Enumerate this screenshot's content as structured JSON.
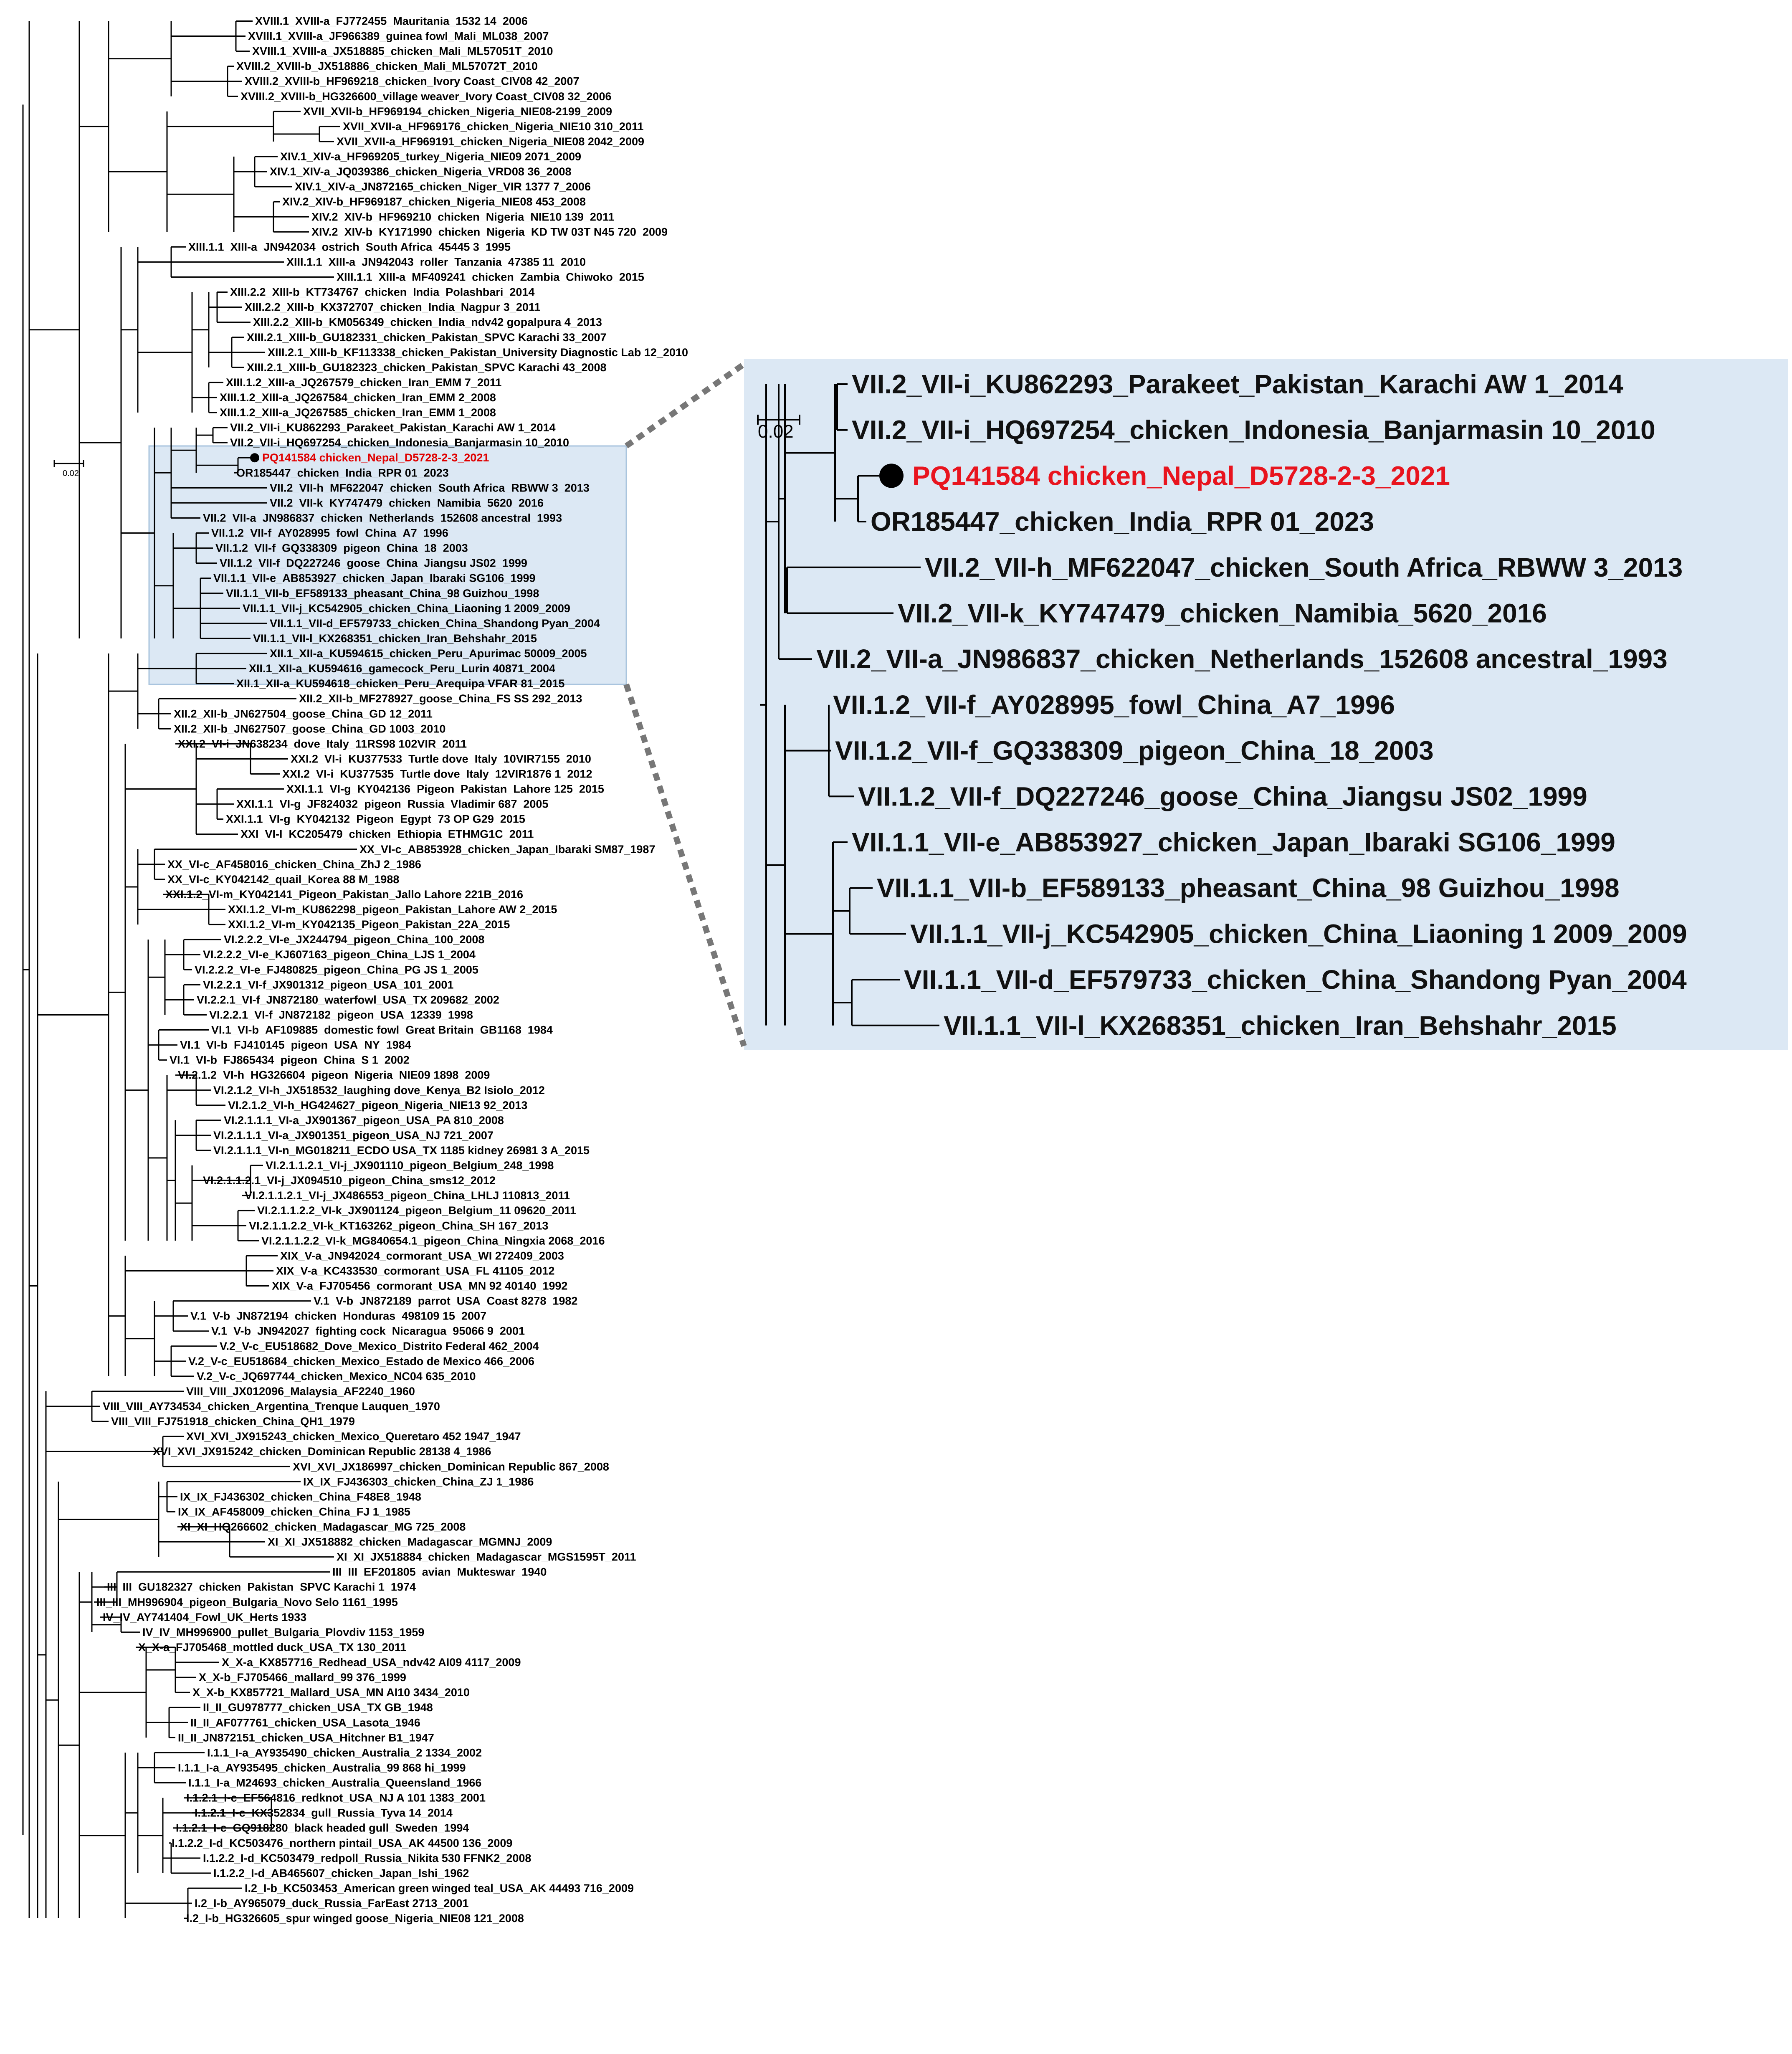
{
  "colors": {
    "highlight": "#e00000",
    "panel": "#dce8f4",
    "connector": "#777777"
  },
  "tree": {
    "scale_label": "0.02",
    "leaves": [
      "XVIII.1_XVIII-a_FJ772455_Mauritania_1532 14_2006",
      "XVIII.1_XVIII-a_JF966389_guinea fowl_Mali_ML038_2007",
      "XVIII.1_XVIII-a_JX518885_chicken_Mali_ML57051T_2010",
      "XVIII.2_XVIII-b_JX518886_chicken_Mali_ML57072T_2010",
      "XVIII.2_XVIII-b_HF969218_chicken_Ivory Coast_CIV08 42_2007",
      "XVIII.2_XVIII-b_HG326600_village weaver_Ivory Coast_CIV08 32_2006",
      "XVII_XVII-b_HF969194_chicken_Nigeria_NIE08-2199_2009",
      "XVII_XVII-a_HF969176_chicken_Nigeria_NIE10 310_2011",
      "XVII_XVII-a_HF969191_chicken_Nigeria_NIE08 2042_2009",
      "XIV.1_XIV-a_HF969205_turkey_Nigeria_NIE09 2071_2009",
      "XIV.1_XIV-a_JQ039386_chicken_Nigeria_VRD08 36_2008",
      "XIV.1_XIV-a_JN872165_chicken_Niger_VIR 1377 7_2006",
      "XIV.2_XIV-b_HF969187_chicken_Nigeria_NIE08 453_2008",
      "XIV.2_XIV-b_HF969210_chicken_Nigeria_NIE10 139_2011",
      "XIV.2_XIV-b_KY171990_chicken_Nigeria_KD TW 03T N45 720_2009",
      "XIII.1.1_XIII-a_JN942034_ostrich_South Africa_45445 3_1995",
      "XIII.1.1_XIII-a_JN942043_roller_Tanzania_47385 11_2010",
      "XIII.1.1_XIII-a_MF409241_chicken_Zambia_Chiwoko_2015",
      "XIII.2.2_XIII-b_KT734767_chicken_India_Polashbari_2014",
      "XIII.2.2_XIII-b_KX372707_chicken_India_Nagpur 3_2011",
      "XIII.2.2_XIII-b_KM056349_chicken_India_ndv42 gopalpura 4_2013",
      "XIII.2.1_XIII-b_GU182331_chicken_Pakistan_SPVC Karachi 33_2007",
      "XIII.2.1_XIII-b_KF113338_chicken_Pakistan_University Diagnostic Lab 12_2010",
      "XIII.2.1_XIII-b_GU182323_chicken_Pakistan_SPVC Karachi 43_2008",
      "XIII.1.2_XIII-a_JQ267579_chicken_Iran_EMM 7_2011",
      "XIII.1.2_XIII-a_JQ267584_chicken_Iran_EMM 2_2008",
      "XIII.1.2_XIII-a_JQ267585_chicken_Iran_EMM 1_2008",
      "VII.2_VII-i_KU862293_Parakeet_Pakistan_Karachi AW 1_2014",
      "VII.2_VII-i_HQ697254_chicken_Indonesia_Banjarmasin 10_2010",
      "PQ141584 chicken_Nepal_D5728-2-3_2021",
      "OR185447_chicken_India_RPR 01_2023",
      "VII.2_VII-h_MF622047_chicken_South Africa_RBWW 3_2013",
      "VII.2_VII-k_KY747479_chicken_Namibia_5620_2016",
      "VII.2_VII-a_JN986837_chicken_Netherlands_152608 ancestral_1993",
      "VII.1.2_VII-f_AY028995_fowl_China_A7_1996",
      "VII.1.2_VII-f_GQ338309_pigeon_China_18_2003",
      "VII.1.2_VII-f_DQ227246_goose_China_Jiangsu JS02_1999",
      "VII.1.1_VII-e_AB853927_chicken_Japan_Ibaraki SG106_1999",
      "VII.1.1_VII-b_EF589133_pheasant_China_98 Guizhou_1998",
      "VII.1.1_VII-j_KC542905_chicken_China_Liaoning 1 2009_2009",
      "VII.1.1_VII-d_EF579733_chicken_China_Shandong Pyan_2004",
      "VII.1.1_VII-l_KX268351_chicken_Iran_Behshahr_2015",
      "XII.1_XII-a_KU594615_chicken_Peru_Apurimac 50009_2005",
      "XII.1_XII-a_KU594616_gamecock_Peru_Lurin 40871_2004",
      "XII.1_XII-a_KU594618_chicken_Peru_Arequipa VFAR 81_2015",
      "XII.2_XII-b_MF278927_goose_China_FS SS 292_2013",
      "XII.2_XII-b_JN627504_goose_China_GD 12_2011",
      "XII.2_XII-b_JN627507_goose_China_GD 1003_2010",
      "XXI.2_VI-i_JN638234_dove_Italy_11RS98 102VIR_2011",
      "XXI.2_VI-i_KU377533_Turtle dove_Italy_10VIR7155_2010",
      "XXI.2_VI-i_KU377535_Turtle dove_Italy_12VIR1876 1_2012",
      "XXI.1.1_VI-g_KY042136_Pigeon_Pakistan_Lahore 125_2015",
      "XXI.1.1_VI-g_JF824032_pigeon_Russia_Vladimir 687_2005",
      "XXI.1.1_VI-g_KY042132_Pigeon_Egypt_73 OP G29_2015",
      "XXI_VI-l_KC205479_chicken_Ethiopia_ETHMG1C_2011",
      "XX_VI-c_AB853928_chicken_Japan_Ibaraki SM87_1987",
      "XX_VI-c_AF458016_chicken_China_ZhJ 2_1986",
      "XX_VI-c_KY042142_quail_Korea 88 M_1988",
      "XXI.1.2_VI-m_KY042141_Pigeon_Pakistan_Jallo Lahore 221B_2016",
      "XXI.1.2_VI-m_KU862298_pigeon_Pakistan_Lahore AW 2_2015",
      "XXI.1.2_VI-m_KY042135_Pigeon_Pakistan_22A_2015",
      "VI.2.2.2_VI-e_JX244794_pigeon_China_100_2008",
      "VI.2.2.2_VI-e_KJ607163_pigeon_China_LJS 1_2004",
      "VI.2.2.2_VI-e_FJ480825_pigeon_China_PG JS 1_2005",
      "VI.2.2.1_VI-f_JX901312_pigeon_USA_101_2001",
      "VI.2.2.1_VI-f_JN872180_waterfowl_USA_TX 209682_2002",
      "VI.2.2.1_VI-f_JN872182_pigeon_USA_12339_1998",
      "VI.1_VI-b_AF109885_domestic fowl_Great Britain_GB1168_1984",
      "VI.1_VI-b_FJ410145_pigeon_USA_NY_1984",
      "VI.1_VI-b_FJ865434_pigeon_China_S 1_2002",
      "VI.2.1.2_VI-h_HG326604_pigeon_Nigeria_NIE09 1898_2009",
      "VI.2.1.2_VI-h_JX518532_laughing dove_Kenya_B2 Isiolo_2012",
      "VI.2.1.2_VI-h_HG424627_pigeon_Nigeria_NIE13 92_2013",
      "VI.2.1.1.1_VI-a_JX901367_pigeon_USA_PA 810_2008",
      "VI.2.1.1.1_VI-a_JX901351_pigeon_USA_NJ 721_2007",
      "VI.2.1.1.1_VI-n_MG018211_ECDO USA_TX 1185 kidney 26981 3 A_2015",
      "VI.2.1.1.2.1_VI-j_JX901110_pigeon_Belgium_248_1998",
      "VI.2.1.1.2.1_VI-j_JX094510_pigeon_China_sms12_2012",
      "VI.2.1.1.2.1_VI-j_JX486553_pigeon_China_LHLJ 110813_2011",
      "VI.2.1.1.2.2_VI-k_JX901124_pigeon_Belgium_11 09620_2011",
      "VI.2.1.1.2.2_VI-k_KT163262_pigeon_China_SH 167_2013",
      "VI.2.1.1.2.2_VI-k_MG840654.1_pigeon_China_Ningxia 2068_2016",
      "XIX_V-a_JN942024_cormorant_USA_WI 272409_2003",
      "XIX_V-a_KC433530_cormorant_USA_FL 41105_2012",
      "XIX_V-a_FJ705456_cormorant_USA_MN 92 40140_1992",
      "V.1_V-b_JN872189_parrot_USA_Coast 8278_1982",
      "V.1_V-b_JN872194_chicken_Honduras_498109 15_2007",
      "V.1_V-b_JN942027_fighting cock_Nicaragua_95066 9_2001",
      "V.2_V-c_EU518682_Dove_Mexico_Distrito Federal 462_2004",
      "V.2_V-c_EU518684_chicken_Mexico_Estado de Mexico 466_2006",
      "V.2_V-c_JQ697744_chicken_Mexico_NC04 635_2010",
      "VIII_VIII_JX012096_Malaysia_AF2240_1960",
      "VIII_VIII_AY734534_chicken_Argentina_Trenque Lauquen_1970",
      "VIII_VIII_FJ751918_chicken_China_QH1_1979",
      "XVI_XVI_JX915243_chicken_Mexico_Queretaro 452 1947_1947",
      "XVI_XVI_JX915242_chicken_Dominican Republic 28138 4_1986",
      "XVI_XVI_JX186997_chicken_Dominican Republic 867_2008",
      "IX_IX_FJ436303_chicken_China_ZJ 1_1986",
      "IX_IX_FJ436302_chicken_China_F48E8_1948",
      "IX_IX_AF458009_chicken_China_FJ 1_1985",
      "XI_XI_HQ266602_chicken_Madagascar_MG 725_2008",
      "XI_XI_JX518882_chicken_Madagascar_MGMNJ_2009",
      "XI_XI_JX518884_chicken_Madagascar_MGS1595T_2011",
      "III_III_EF201805_avian_Mukteswar_1940",
      "III_III_GU182327_chicken_Pakistan_SPVC Karachi 1_1974",
      "III_III_MH996904_pigeon_Bulgaria_Novo Selo 1161_1995",
      "IV_IV_AY741404_Fowl_UK_Herts 1933",
      "IV_IV_MH996900_pullet_Bulgaria_Plovdiv 1153_1959",
      "X_X-a_FJ705468_mottled duck_USA_TX 130_2011",
      "X_X-a_KX857716_Redhead_USA_ndv42 AI09 4117_2009",
      "X_X-b_FJ705466_mallard_99 376_1999",
      "X_X-b_KX857721_Mallard_USA_MN AI10 3434_2010",
      "II_II_GU978777_chicken_USA_TX GB_1948",
      "II_II_AF077761_chicken_USA_Lasota_1946",
      "II_II_JN872151_chicken_USA_Hitchner B1_1947",
      "I.1.1_I-a_AY935490_chicken_Australia_2 1334_2002",
      "I.1.1_I-a_AY935495_chicken_Australia_99 868 hi_1999",
      "I.1.1_I-a_M24693_chicken_Australia_Queensland_1966",
      "I.1.2.1_I-c_EF564816_redknot_USA_NJ A 101 1383_2001",
      "I.1.2.1_I-c_KX352834_gull_Russia_Tyva 14_2014",
      "I.1.2.1_I-c_GQ918280_black headed gull_Sweden_1994",
      "I.1.2.2_I-d_KC503476_northern pintail_USA_AK 44500 136_2009",
      "I.1.2.2_I-d_KC503479_redpoll_Russia_Nikita 530 FFNK2_2008",
      "I.1.2.2_I-d_AB465607_chicken_Japan_Ishi_1962",
      "I.2_I-b_KC503453_American green winged teal_USA_AK 44493 716_2009",
      "I.2_I-b_AY965079_duck_Russia_FarEast 2713_2001",
      "I.2_I-b_HG326605_spur winged goose_Nigeria_NIE08 121_2008"
    ]
  },
  "zoom": {
    "scale_label": "0.02",
    "leaves": [
      "VII.2_VII-i_KU862293_Parakeet_Pakistan_Karachi AW 1_2014",
      "VII.2_VII-i_HQ697254_chicken_Indonesia_Banjarmasin 10_2010",
      "PQ141584 chicken_Nepal_D5728-2-3_2021",
      "OR185447_chicken_India_RPR 01_2023",
      "VII.2_VII-h_MF622047_chicken_South Africa_RBWW 3_2013",
      "VII.2_VII-k_KY747479_chicken_Namibia_5620_2016",
      "VII.2_VII-a_JN986837_chicken_Netherlands_152608 ancestral_1993",
      "VII.1.2_VII-f_AY028995_fowl_China_A7_1996",
      "VII.1.2_VII-f_GQ338309_pigeon_China_18_2003",
      "VII.1.2_VII-f_DQ227246_goose_China_Jiangsu JS02_1999",
      "VII.1.1_VII-e_AB853927_chicken_Japan_Ibaraki SG106_1999",
      "VII.1.1_VII-b_EF589133_pheasant_China_98 Guizhou_1998",
      "VII.1.1_VII-j_KC542905_chicken_China_Liaoning 1 2009_2009",
      "VII.1.1_VII-d_EF579733_chicken_China_Shandong Pyan_2004",
      "VII.1.1_VII-l_KX268351_chicken_Iran_Behshahr_2015"
    ]
  }
}
